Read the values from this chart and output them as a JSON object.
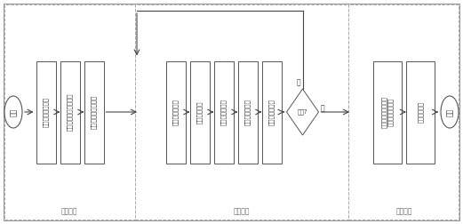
{
  "bg_color": "#ffffff",
  "outer_border_color": "#999999",
  "section_bg": "#ffffff",
  "section_dash_color": "#aaaaaa",
  "box_fill": "#ffffff",
  "box_edge": "#555555",
  "arrow_color": "#444444",
  "text_color": "#333333",
  "section1_label": "标定阶段",
  "section2_label": "数据获取",
  "section3_label": "数据处理",
  "start_label": "开始",
  "end_label": "结束",
  "boxes_s1": [
    "标定摄像机内参数",
    "标定线结构光平面方程",
    "标定机械臂手眼矩阵"
  ],
  "boxes_s2": [
    "调整机械臂位姿",
    "采集焊缝图像",
    "预处理焊缝图像",
    "提取光条中心线",
    "求取焊缝中心点"
  ],
  "diamond_label": "完成?",
  "no_label": "否",
  "yes_label": "是",
  "boxes_s3_line1": [
    "变换所有的焊缝中心\n点到统一的坐标系",
    "重建三维焊缝"
  ],
  "figw": 5.21,
  "figh": 2.52,
  "dpi": 100
}
